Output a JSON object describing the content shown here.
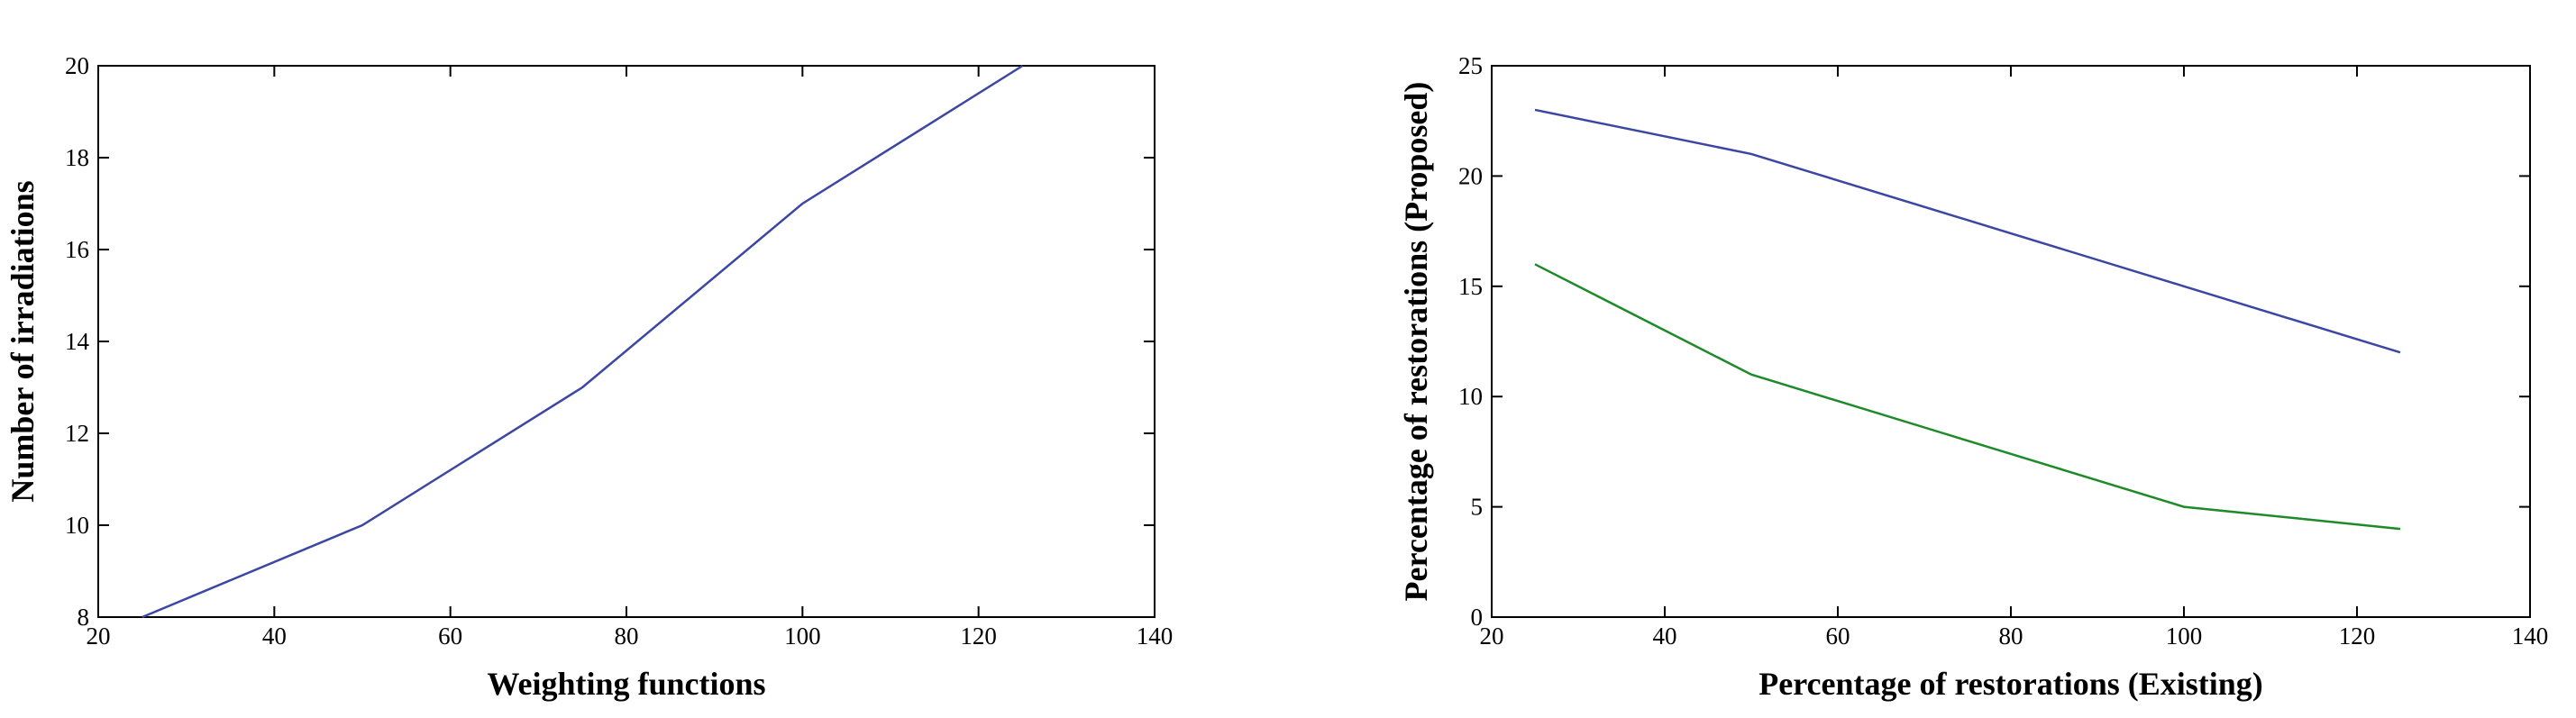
{
  "chart_data": [
    {
      "type": "line",
      "xlabel": "Weighting functions",
      "ylabel": "Number of irradiations",
      "x": [
        25,
        50,
        75,
        100,
        125
      ],
      "series": [
        {
          "color": "#3b47a3",
          "values": [
            8,
            10,
            13,
            17,
            20
          ]
        }
      ],
      "xlim": [
        20,
        140
      ],
      "xticks": [
        20,
        40,
        60,
        80,
        100,
        120,
        140
      ],
      "ylim": [
        8,
        20
      ],
      "yticks": [
        8,
        10,
        12,
        14,
        16,
        18,
        20
      ]
    },
    {
      "type": "line",
      "xlabel": "Percentage of restorations (Existing)",
      "ylabel": "Percentage of restorations (Proposed)",
      "x": [
        25,
        50,
        75,
        100,
        125
      ],
      "series": [
        {
          "color": "#3b47a3",
          "values": [
            23,
            21,
            18,
            15,
            12
          ]
        },
        {
          "color": "#1f8a2a",
          "values": [
            16,
            11,
            8,
            5,
            4
          ]
        }
      ],
      "xlim": [
        20,
        140
      ],
      "xticks": [
        20,
        40,
        60,
        80,
        100,
        120,
        140
      ],
      "ylim": [
        0,
        25
      ],
      "yticks": [
        0,
        5,
        10,
        15,
        20,
        25
      ]
    }
  ]
}
